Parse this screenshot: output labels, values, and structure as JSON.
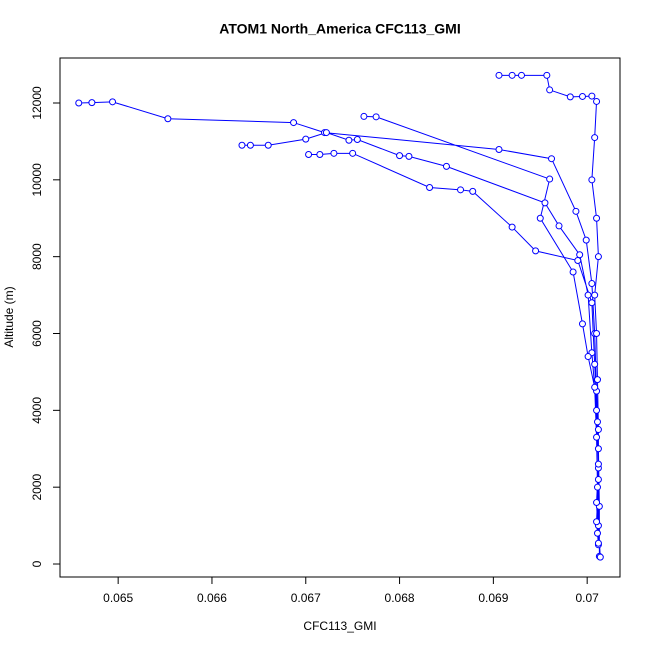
{
  "chart_data": {
    "type": "line",
    "title": "ATOM1 North_America CFC113_GMI",
    "x_label": "CFC113_GMI",
    "y_label": "Altitude (m)",
    "x": [
      0.06458,
      0.06472,
      0.06494,
      0.06553,
      0.06687,
      0.0672,
      0.06906,
      0.06962,
      0.06988,
      0.06999,
      0.07005,
      0.07008,
      0.0701,
      0.07012,
      0.07013,
      0.07013,
      null,
      0.06632,
      0.06641,
      0.0666,
      0.067,
      0.06722,
      0.06746,
      0.06755,
      0.068,
      0.0681,
      0.0685,
      0.06955,
      0.0697,
      0.06992,
      0.07001,
      0.07005,
      0.0701,
      0.07012,
      0.07012,
      0.07014,
      null,
      0.06906,
      0.0692,
      0.0693,
      0.06957,
      0.0696,
      0.06982,
      0.06995,
      0.07005,
      0.0701,
      0.07008,
      0.07005,
      0.0701,
      0.07012,
      0.07008,
      0.0701,
      0.07011,
      0.07012,
      0.07012,
      0.0701,
      0.07012,
      null,
      0.06762,
      0.06775,
      0.0696,
      0.0695,
      0.06985,
      0.06995,
      0.07001,
      0.07008,
      0.0701,
      0.07011,
      0.07011,
      null,
      0.06703,
      0.06715,
      0.0673,
      0.0675,
      0.06832,
      0.06865,
      0.06878,
      0.0692,
      0.06945,
      0.0699,
      0.07005,
      0.07008,
      0.07011,
      0.07012,
      0.0701,
      0.07012
    ],
    "series": [
      {
        "color": "#0000ff",
        "values": [
          12000,
          12010,
          12030,
          11590,
          11490,
          11230,
          10790,
          10550,
          9180,
          8430,
          7300,
          6000,
          4500,
          3000,
          1500,
          200,
          null,
          10900,
          10900,
          10900,
          11060,
          11230,
          11030,
          11050,
          10630,
          10610,
          10350,
          9400,
          8800,
          8050,
          7000,
          5500,
          4000,
          2500,
          1000,
          180,
          null,
          12720,
          12720,
          12720,
          12720,
          12340,
          12160,
          12170,
          12180,
          12040,
          11100,
          10000,
          9000,
          8000,
          7000,
          6000,
          4800,
          3500,
          2200,
          1100,
          500,
          null,
          11650,
          11640,
          10020,
          9000,
          7600,
          6250,
          5400,
          4600,
          3300,
          2000,
          800,
          null,
          10660,
          10660,
          10690,
          10690,
          9800,
          9740,
          9700,
          8770,
          8150,
          7900,
          6800,
          5200,
          3700,
          2600,
          1600,
          540
        ]
      }
    ],
    "xlim": [
      0.06438,
      0.07035
    ],
    "ylim": [
      -338,
      13171
    ],
    "xticks": [
      0.065,
      0.066,
      0.067,
      0.068,
      0.069,
      0.07
    ],
    "yticks": [
      0,
      2000,
      4000,
      6000,
      8000,
      10000,
      12000
    ]
  }
}
